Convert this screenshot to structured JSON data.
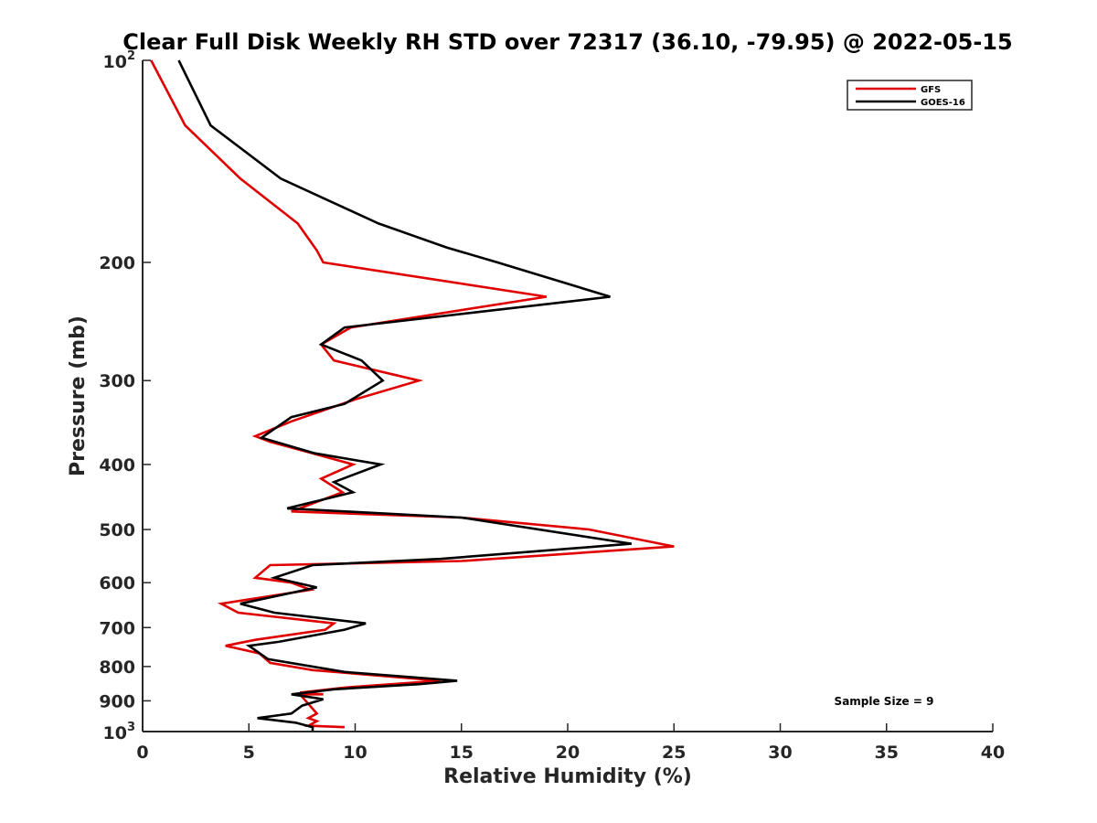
{
  "chart_data": {
    "type": "line",
    "title": "Clear Full Disk Weekly RH STD over 72317 (36.10, -79.95) @ 2022-05-15",
    "xlabel": "Relative Humidity (%)",
    "ylabel": "Pressure (mb)",
    "xlim": [
      0,
      40
    ],
    "ylim": [
      100,
      1000
    ],
    "y_scale": "log",
    "y_reversed": true,
    "x_ticks": [
      0,
      5,
      10,
      15,
      20,
      25,
      30,
      35,
      40
    ],
    "x_tick_labels": [
      "0",
      "5",
      "10",
      "15",
      "20",
      "25",
      "30",
      "35",
      "40"
    ],
    "y_ticks": [
      200,
      300,
      400,
      500,
      600,
      700,
      800,
      900
    ],
    "y_tick_labels": [
      "200",
      "300",
      "400",
      "500",
      "600",
      "700",
      "800",
      "900"
    ],
    "y_tick_100": {
      "base": "10",
      "exp": "2"
    },
    "y_tick_1000": {
      "base": "10",
      "exp": "3"
    },
    "grid": false,
    "legend_position": "top-right",
    "annotation": "Sample Size = 9",
    "series": [
      {
        "name": "GFS",
        "color": "#e00000",
        "points": [
          [
            0.4,
            100
          ],
          [
            2.0,
            125
          ],
          [
            4.6,
            150
          ],
          [
            7.3,
            175
          ],
          [
            8.2,
            192
          ],
          [
            8.5,
            200
          ],
          [
            19.0,
            225
          ],
          [
            9.8,
            250
          ],
          [
            8.4,
            265
          ],
          [
            9.0,
            280
          ],
          [
            13.0,
            300
          ],
          [
            10.0,
            320
          ],
          [
            7.0,
            345
          ],
          [
            5.3,
            363
          ],
          [
            6.0,
            370
          ],
          [
            8.0,
            385
          ],
          [
            9.9,
            400
          ],
          [
            8.4,
            420
          ],
          [
            9.4,
            440
          ],
          [
            7.0,
            470
          ],
          [
            15.0,
            480
          ],
          [
            21.0,
            500
          ],
          [
            25.0,
            530
          ],
          [
            15.0,
            557
          ],
          [
            6.0,
            565
          ],
          [
            5.3,
            590
          ],
          [
            7.0,
            600
          ],
          [
            7.9,
            615
          ],
          [
            3.7,
            645
          ],
          [
            4.5,
            665
          ],
          [
            9.0,
            690
          ],
          [
            8.6,
            705
          ],
          [
            5.3,
            730
          ],
          [
            3.9,
            745
          ],
          [
            5.5,
            765
          ],
          [
            6.0,
            790
          ],
          [
            8.0,
            810
          ],
          [
            14.0,
            840
          ],
          [
            9.5,
            860
          ],
          [
            7.4,
            875
          ],
          [
            8.5,
            880
          ],
          [
            7.4,
            880
          ],
          [
            8.2,
            940
          ],
          [
            7.8,
            955
          ],
          [
            8.2,
            965
          ],
          [
            7.8,
            980
          ],
          [
            9.5,
            985
          ]
        ]
      },
      {
        "name": "GOES-16",
        "color": "#000000",
        "points": [
          [
            1.7,
            100
          ],
          [
            3.2,
            125
          ],
          [
            6.5,
            150
          ],
          [
            11.1,
            175
          ],
          [
            14.3,
            190
          ],
          [
            16.7,
            200
          ],
          [
            22.0,
            225
          ],
          [
            9.5,
            250
          ],
          [
            8.4,
            265
          ],
          [
            10.3,
            280
          ],
          [
            11.3,
            300
          ],
          [
            9.5,
            325
          ],
          [
            7.0,
            340
          ],
          [
            5.6,
            365
          ],
          [
            8.1,
            385
          ],
          [
            11.2,
            400
          ],
          [
            9.0,
            425
          ],
          [
            9.9,
            440
          ],
          [
            6.8,
            465
          ],
          [
            15.0,
            480
          ],
          [
            23.0,
            525
          ],
          [
            14.0,
            553
          ],
          [
            8.0,
            565
          ],
          [
            6.2,
            590
          ],
          [
            8.2,
            610
          ],
          [
            4.6,
            645
          ],
          [
            6.2,
            665
          ],
          [
            10.5,
            690
          ],
          [
            9.5,
            705
          ],
          [
            6.4,
            735
          ],
          [
            5.0,
            745
          ],
          [
            5.9,
            780
          ],
          [
            9.5,
            815
          ],
          [
            14.8,
            840
          ],
          [
            13.0,
            850
          ],
          [
            9.0,
            865
          ],
          [
            7.0,
            880
          ],
          [
            8.5,
            895
          ],
          [
            7.5,
            915
          ],
          [
            7.0,
            940
          ],
          [
            5.4,
            955
          ],
          [
            7.2,
            970
          ],
          [
            8.0,
            985
          ],
          [
            8.0,
            1000
          ]
        ]
      }
    ]
  }
}
